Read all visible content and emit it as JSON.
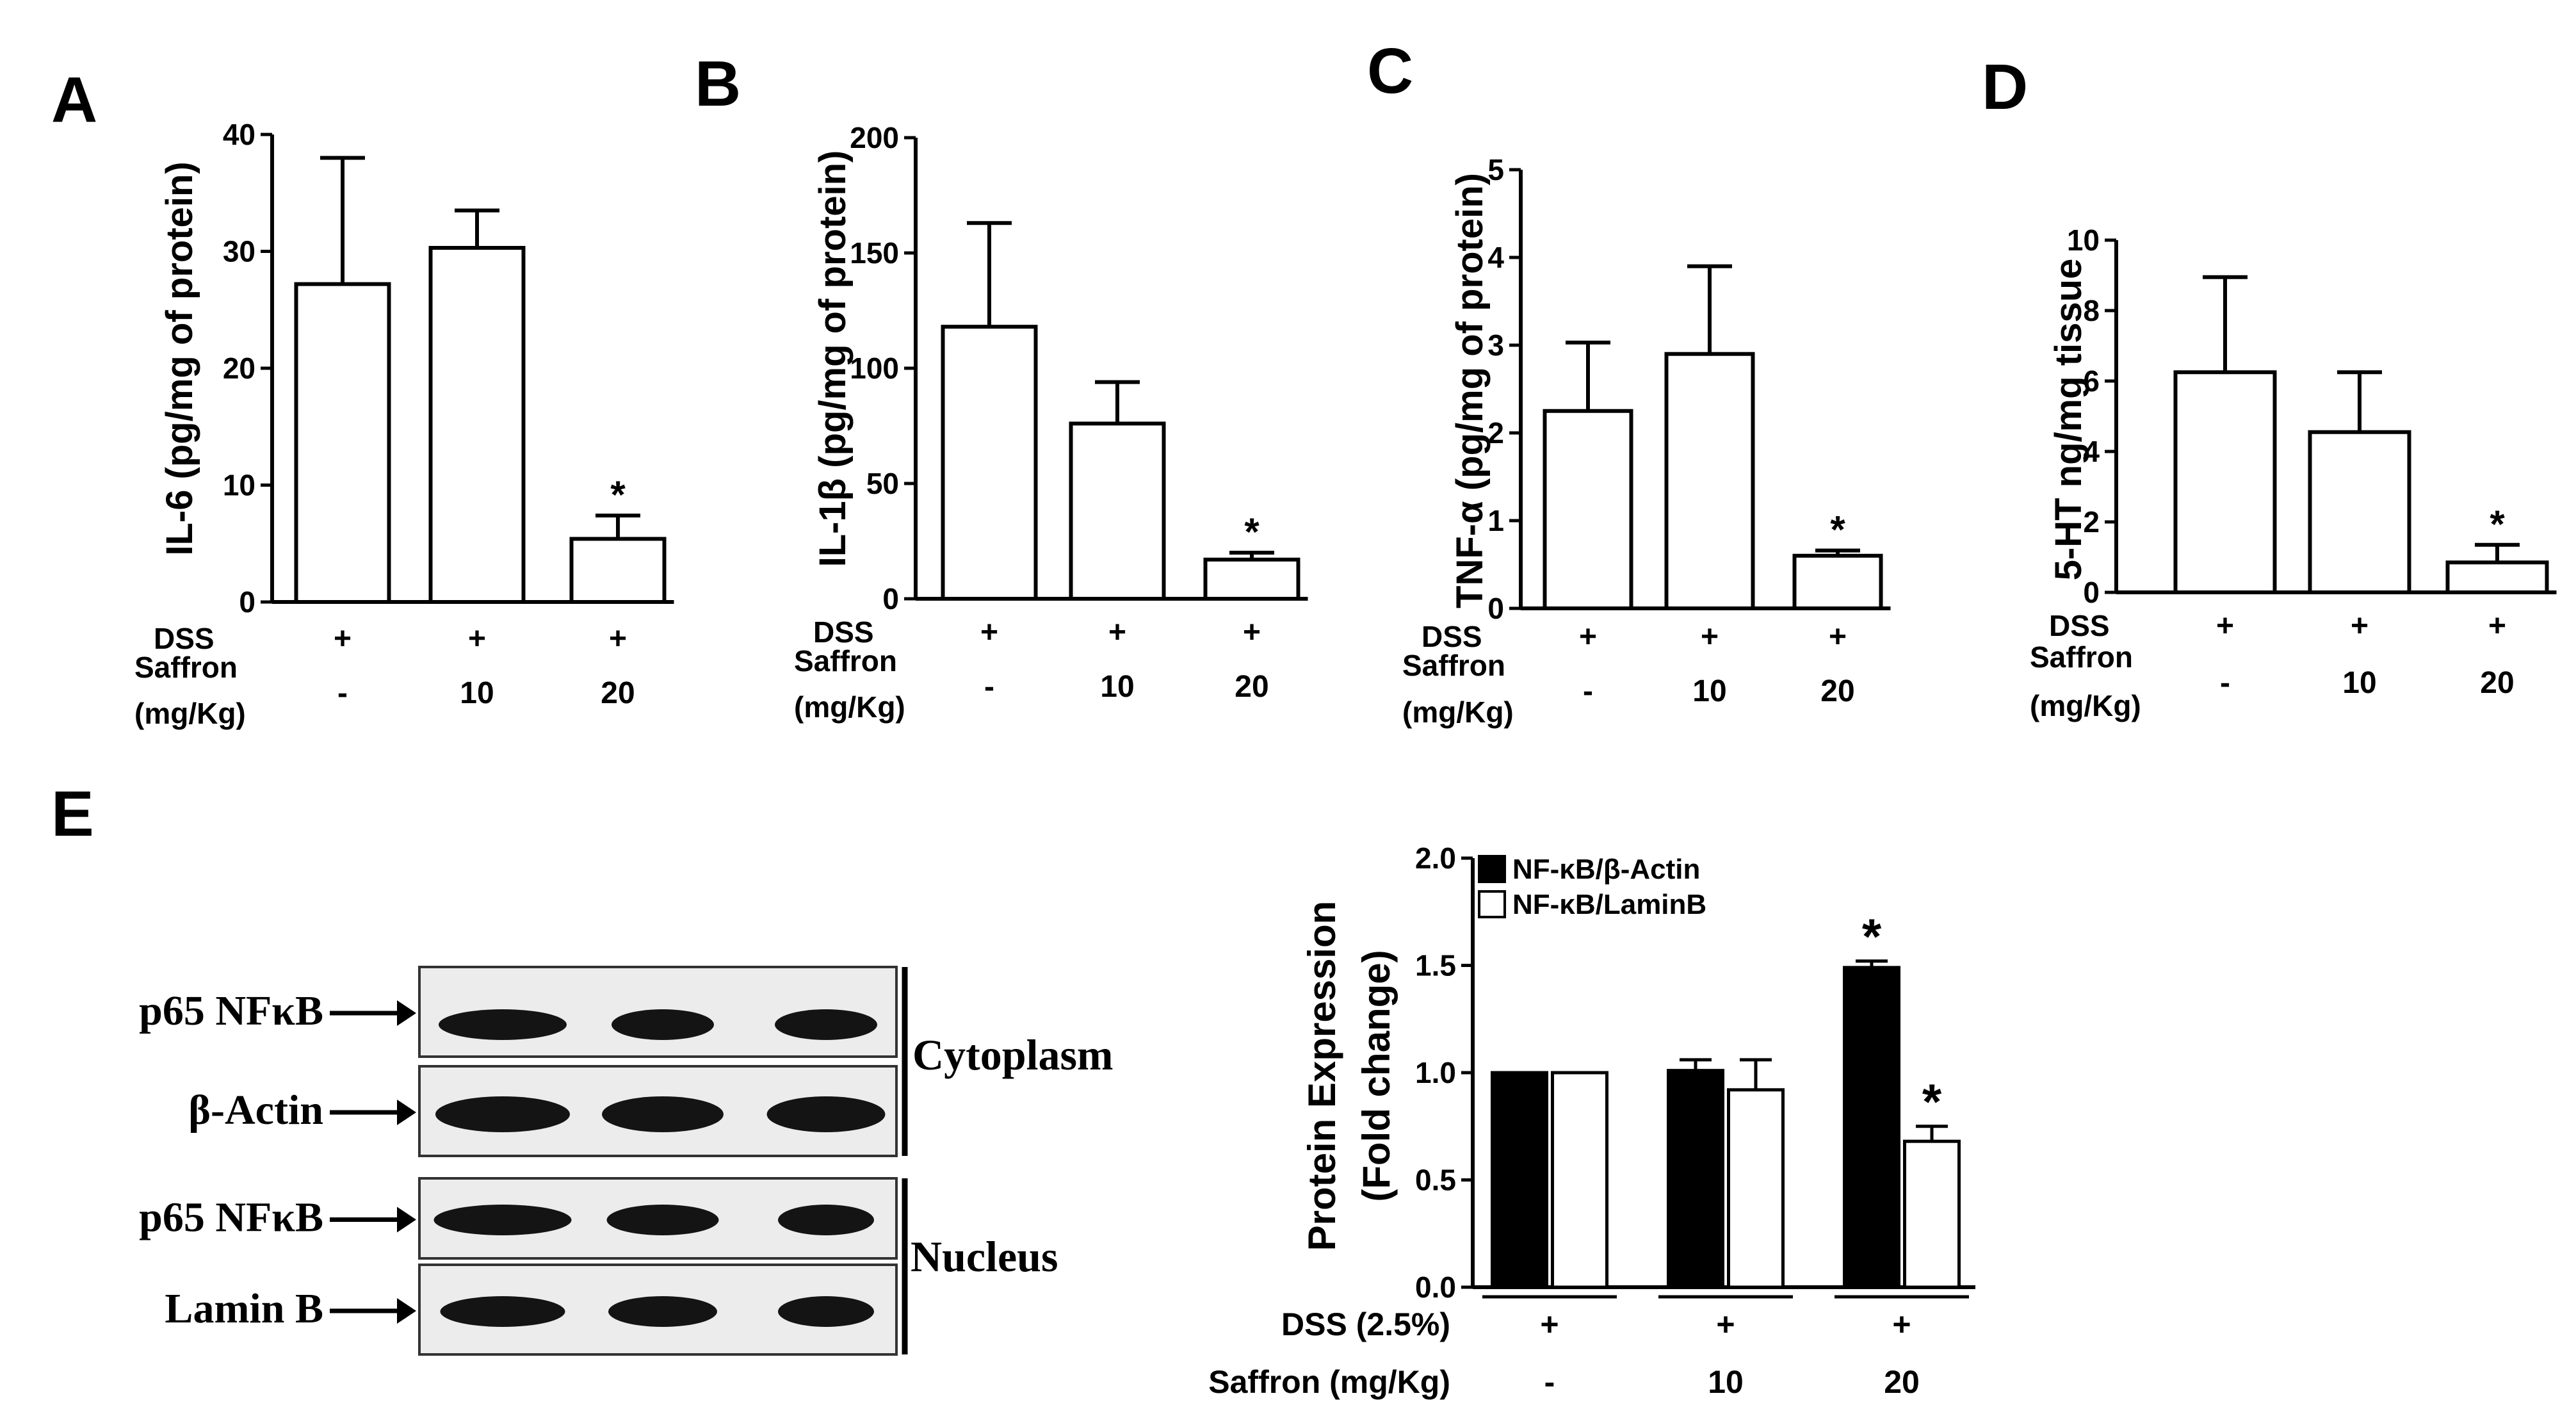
{
  "panels": [
    {
      "letter": "A",
      "ylabel": "IL-6 (pg/mg of protein)",
      "ylim": [
        0,
        40
      ],
      "yticks": [
        0,
        10,
        20,
        30,
        40
      ]
    },
    {
      "letter": "B",
      "ylabel": "IL-1β (pg/mg of protein)",
      "ylim": [
        0,
        200
      ],
      "yticks": [
        0,
        50,
        100,
        150,
        200
      ]
    },
    {
      "letter": "C",
      "ylabel": "TNF-α (pg/mg of protein)",
      "ylim": [
        0,
        5
      ],
      "yticks": [
        0,
        1,
        2,
        3,
        4,
        5
      ]
    },
    {
      "letter": "D",
      "ylabel": "5-HT ng/mg tissue",
      "ylim": [
        0,
        10
      ],
      "yticks": [
        0,
        2,
        4,
        6,
        8,
        10
      ]
    },
    {
      "letter": "E"
    }
  ],
  "row_labels": {
    "dss": "DSS",
    "dss_e": "DSS (2.5%)",
    "saffron_line1": "Saffron",
    "saffron_line2": "(mg/Kg)",
    "saffron_e": "Saffron (mg/Kg)"
  },
  "treatment": {
    "dss": [
      "+",
      "+",
      "+"
    ],
    "saffron": [
      "-",
      "10",
      "20"
    ]
  },
  "significance_marker": "*",
  "western_blot": {
    "left_labels": [
      "p65 NFκB",
      "β-Actin",
      "p65 NFκB",
      "Lamin B"
    ],
    "compartments": [
      "Cytoplasm",
      "Nucleus"
    ]
  },
  "chart_data": [
    {
      "panel": "A",
      "type": "bar",
      "categories": [
        "-",
        "10",
        "20"
      ],
      "values": [
        27.2,
        30.3,
        5.4
      ],
      "errors": [
        10.8,
        3.2,
        2.0
      ],
      "significant": [
        false,
        false,
        true
      ],
      "ylabel": "IL-6 (pg/mg of protein)",
      "ylim": [
        0,
        40
      ]
    },
    {
      "panel": "B",
      "type": "bar",
      "categories": [
        "-",
        "10",
        "20"
      ],
      "values": [
        118,
        76,
        17
      ],
      "errors": [
        45,
        18,
        3
      ],
      "significant": [
        false,
        false,
        true
      ],
      "ylabel": "IL-1β (pg/mg of protein)",
      "ylim": [
        0,
        200
      ]
    },
    {
      "panel": "C",
      "type": "bar",
      "categories": [
        "-",
        "10",
        "20"
      ],
      "values": [
        2.25,
        2.9,
        0.6
      ],
      "errors": [
        0.78,
        1.0,
        0.06
      ],
      "significant": [
        false,
        false,
        true
      ],
      "ylabel": "TNF-α (pg/mg of protein)",
      "ylim": [
        0,
        5
      ]
    },
    {
      "panel": "D",
      "type": "bar",
      "categories": [
        "-",
        "10",
        "20"
      ],
      "values": [
        6.25,
        4.55,
        0.85
      ],
      "errors": [
        2.7,
        1.7,
        0.5
      ],
      "significant": [
        false,
        false,
        true
      ],
      "ylabel": "5-HT ng/mg tissue",
      "ylim": [
        0,
        10
      ]
    },
    {
      "panel": "E",
      "type": "bar",
      "categories": [
        "-",
        "10",
        "20"
      ],
      "ylabel": "Protein Expression (Fold change)",
      "ylim": [
        0,
        2.0
      ],
      "yticks": [
        "0.0",
        "0.5",
        "1.0",
        "1.5",
        "2.0"
      ],
      "legend": "top-left",
      "series": [
        {
          "name": "NF-κB/β-Actin",
          "color": "#000000",
          "values": [
            1.0,
            1.01,
            1.49
          ],
          "errors": [
            0.0,
            0.05,
            0.03
          ],
          "significant": [
            false,
            false,
            true
          ]
        },
        {
          "name": "NF-κB/LaminB",
          "color": "#ffffff",
          "values": [
            1.0,
            0.92,
            0.68
          ],
          "errors": [
            0.0,
            0.14,
            0.07
          ],
          "significant": [
            false,
            false,
            true
          ]
        }
      ]
    }
  ]
}
